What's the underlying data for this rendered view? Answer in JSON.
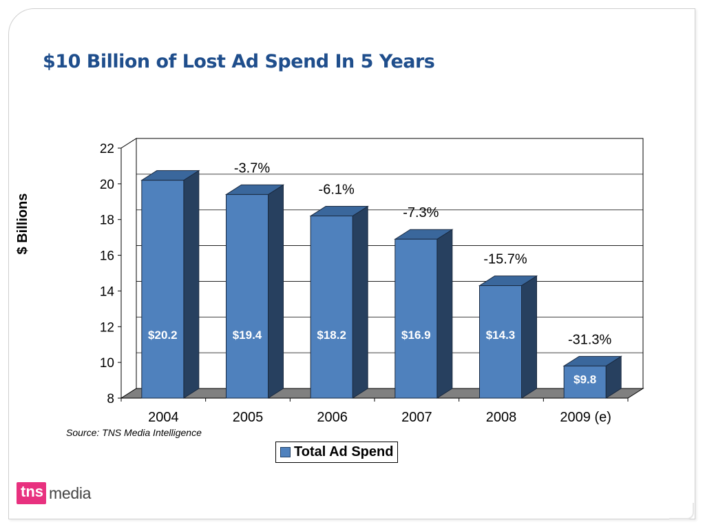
{
  "slide": {
    "title": "$10 Billion of Lost Ad Spend In 5 Years",
    "source": "Source: TNS Media Intelligence",
    "logo_brand": "tns",
    "logo_text": "media"
  },
  "chart_data": {
    "type": "bar",
    "categories": [
      "2004",
      "2005",
      "2006",
      "2007",
      "2008",
      "2009 (e)"
    ],
    "series": [
      {
        "name": "Total Ad Spend",
        "values": [
          20.2,
          19.4,
          18.2,
          16.9,
          14.3,
          9.8
        ]
      }
    ],
    "value_labels": [
      "$20.2",
      "$19.4",
      "$18.2",
      "$16.9",
      "$14.3",
      "$9.8"
    ],
    "change_labels": [
      "",
      "-3.7%",
      "-6.1%",
      "-7.3%",
      "-15.7%",
      "-31.3%"
    ],
    "ylabel": "$ Billions",
    "ylim": [
      8,
      22
    ],
    "yticks": [
      8,
      10,
      12,
      14,
      16,
      18,
      20,
      22
    ],
    "grid": true,
    "legend_position": "bottom-center",
    "colors": {
      "bar_front": "#4f81bd",
      "bar_side": "#27405f",
      "bar_top": "#3a679c",
      "floor": "#808080"
    }
  }
}
